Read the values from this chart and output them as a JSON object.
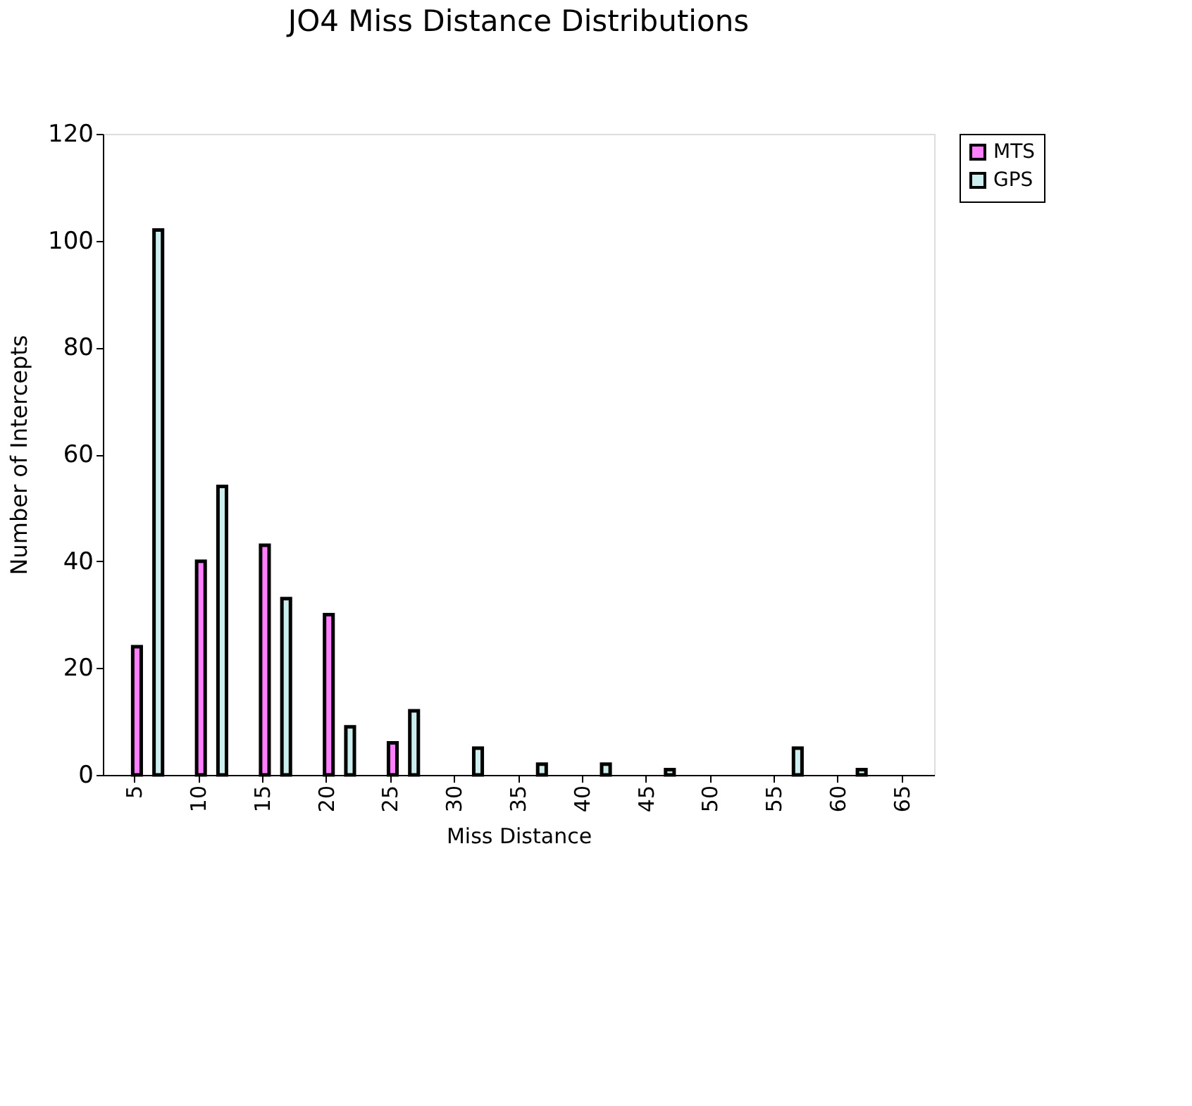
{
  "chart_data": {
    "type": "bar",
    "title": "JO4 Miss Distance Distributions",
    "xlabel": "Miss Distance",
    "ylabel": "Number of Intercepts",
    "categories": [
      "5",
      "10",
      "15",
      "20",
      "25",
      "30",
      "35",
      "40",
      "45",
      "50",
      "55",
      "60",
      "65"
    ],
    "series": [
      {
        "name": "MTS",
        "color": "#ff80ff",
        "values": [
          24,
          40,
          43,
          30,
          6,
          null,
          null,
          null,
          null,
          null,
          null,
          null,
          null
        ]
      },
      {
        "name": "GPS",
        "color": "#cceeee",
        "values": [
          102,
          54,
          33,
          9,
          12,
          5,
          2,
          2,
          1,
          null,
          5,
          1,
          null
        ]
      }
    ],
    "ylim": [
      0,
      120
    ],
    "yticks": [
      0,
      20,
      40,
      60,
      80,
      100,
      120
    ],
    "grid": false,
    "legend": "right"
  }
}
